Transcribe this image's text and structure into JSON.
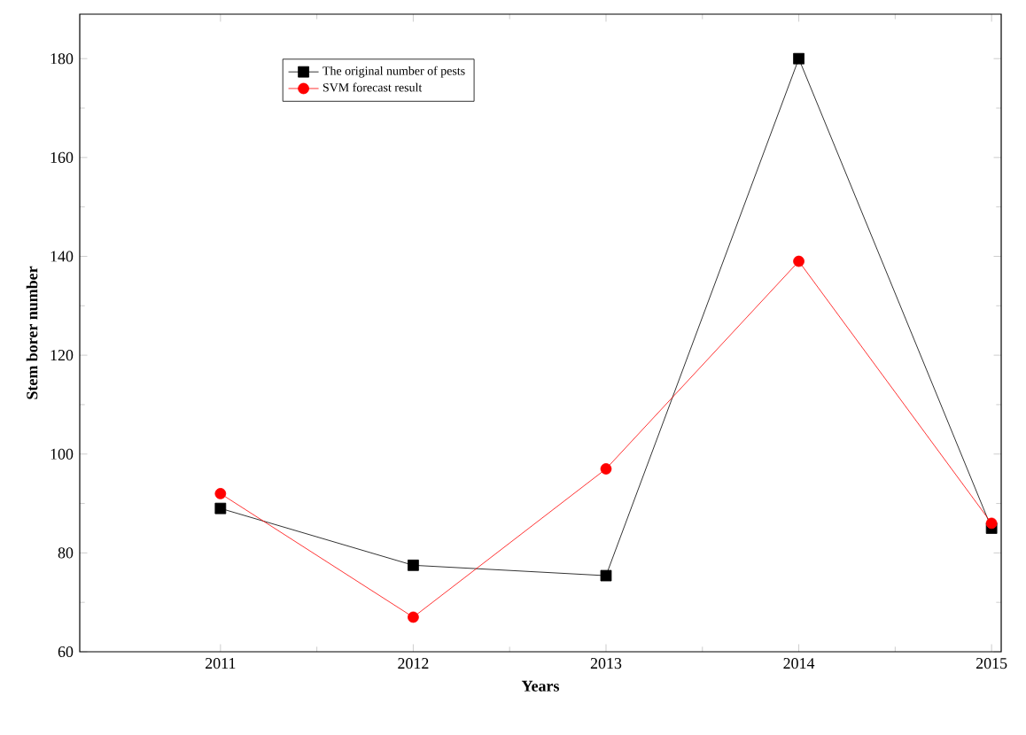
{
  "chart_data": {
    "type": "line",
    "xlabel": "Years",
    "ylabel": "Stem borer number",
    "x": [
      2011,
      2012,
      2013,
      2014,
      2015
    ],
    "series": [
      {
        "name": "The original number of pests",
        "color": "#000000",
        "marker": "square",
        "values": [
          89,
          77.5,
          75.4,
          180,
          85
        ]
      },
      {
        "name": "SVM forecast result",
        "color": "#ff0000",
        "marker": "circle",
        "values": [
          92,
          67,
          97,
          139,
          86
        ]
      }
    ],
    "xlim": [
      2010.27,
      2015.05
    ],
    "xticks": [
      2011,
      2012,
      2013,
      2014,
      2015
    ],
    "ylim": [
      60,
      189
    ],
    "yticks": [
      60,
      80,
      100,
      120,
      140,
      160,
      180
    ],
    "legend": "top left",
    "grid": false,
    "line_style": "solid"
  }
}
